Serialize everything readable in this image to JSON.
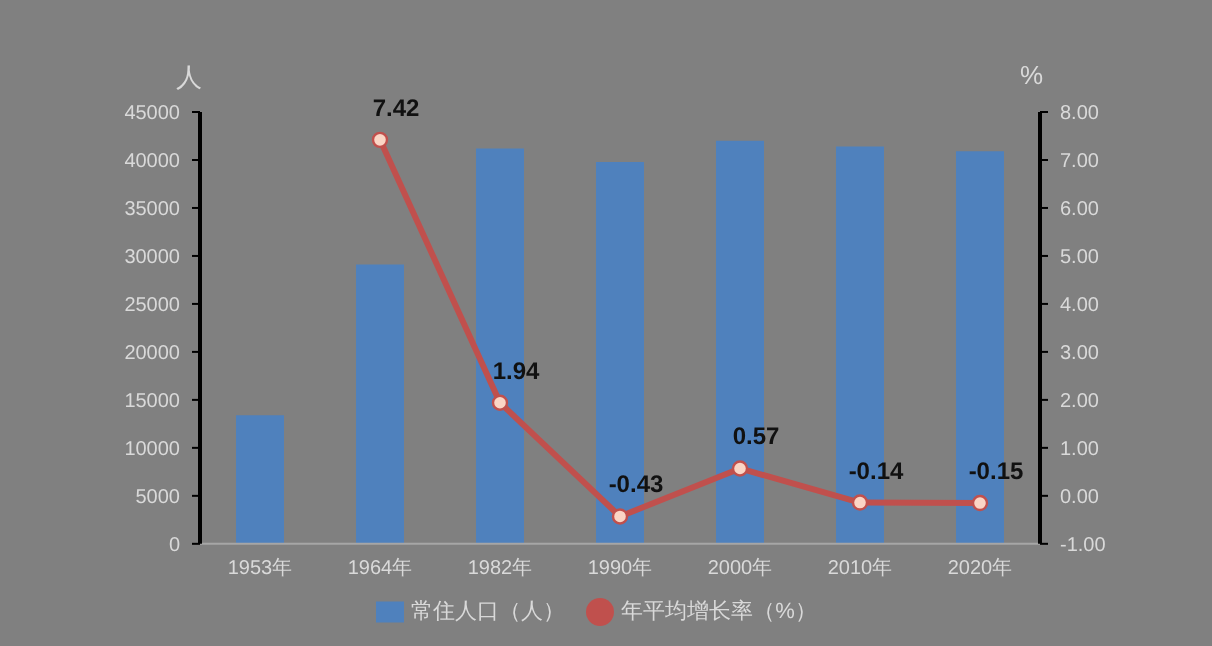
{
  "chart_data": {
    "type": "bar",
    "categories": [
      "1953年",
      "1964年",
      "1982年",
      "1990年",
      "2000年",
      "2010年",
      "2020年"
    ],
    "ylabel": "人",
    "y2label": "%",
    "ylim": [
      0,
      45000
    ],
    "yticks": [
      0,
      5000,
      10000,
      15000,
      20000,
      25000,
      30000,
      35000,
      40000,
      45000
    ],
    "y2lim": [
      -1,
      8
    ],
    "y2ticks": [
      {
        "value": -1,
        "label": "-1.00"
      },
      {
        "value": 0,
        "label": "0.00"
      },
      {
        "value": 1,
        "label": "1.00"
      },
      {
        "value": 2,
        "label": "2.00"
      },
      {
        "value": 3,
        "label": "3.00"
      },
      {
        "value": 4,
        "label": "4.00"
      },
      {
        "value": 5,
        "label": "5.00"
      },
      {
        "value": 6,
        "label": "6.00"
      },
      {
        "value": 7,
        "label": "7.00"
      },
      {
        "value": 8,
        "label": "8.00"
      }
    ],
    "grid": false,
    "legend": "bottom",
    "series": [
      {
        "name": "常住人口（人）",
        "color": "#4f81bd",
        "values": [
          13400,
          29100,
          41200,
          39800,
          42000,
          41400,
          40900
        ]
      },
      {
        "name": "年平均增长率（%）",
        "type": "line",
        "axis": "y2",
        "color": "#c0504d",
        "marker": "circle",
        "values": [
          null,
          7.42,
          1.94,
          -0.43,
          0.57,
          -0.14,
          -0.15
        ],
        "value_labels": [
          null,
          "7.42",
          "1.94",
          "-0.43",
          "0.57",
          "-0.14",
          "-0.15"
        ]
      }
    ]
  }
}
